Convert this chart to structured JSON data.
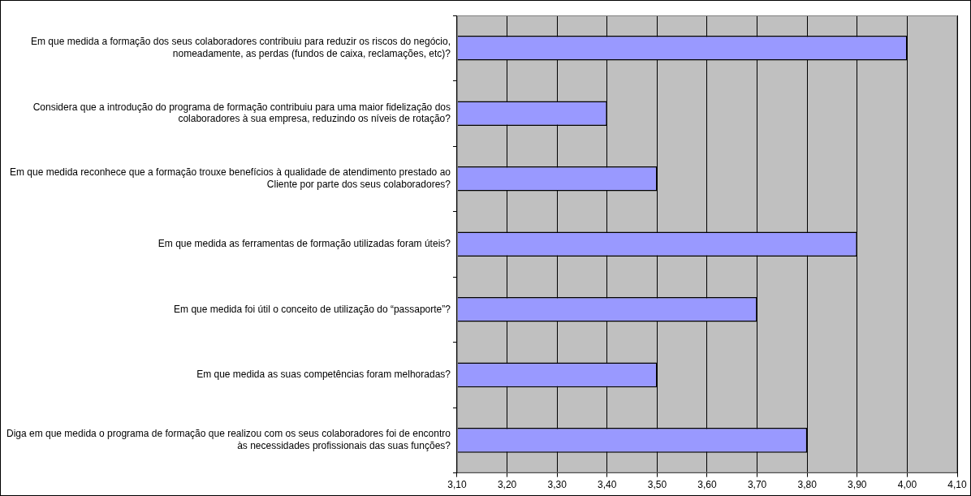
{
  "chart_data": {
    "type": "bar",
    "orientation": "horizontal",
    "categories": [
      "Em que medida a formação dos seus colaboradores contribuiu para reduzir os riscos do negócio, nomeadamente, as perdas (fundos de caixa, reclamações, etc)?",
      "Considera que a introdução do programa de formação contribuiu para uma maior fidelização dos colaboradores à sua empresa, reduzindo os níveis de rotação?",
      "Em que medida reconhece que a formação trouxe benefícios à qualidade de atendimento prestado ao Cliente por parte dos seus colaboradores?",
      "Em que medida as ferramentas de formação utilizadas foram úteis?",
      "Em que medida foi útil o conceito de utilização do “passaporte”?",
      "Em que medida as suas competências foram melhoradas?",
      "Diga em que medida o programa de formação que realizou com os seus colaboradores foi de encontro às necessidades profissionais das suas funções?"
    ],
    "values": [
      4.0,
      3.4,
      3.5,
      3.9,
      3.7,
      3.5,
      3.8
    ],
    "color": "#9999ff",
    "xlim": [
      3.1,
      4.1
    ],
    "xticks": [
      {
        "value": 3.1,
        "label": "3,10"
      },
      {
        "value": 3.2,
        "label": "3,20"
      },
      {
        "value": 3.3,
        "label": "3,30"
      },
      {
        "value": 3.4,
        "label": "3,40"
      },
      {
        "value": 3.5,
        "label": "3,50"
      },
      {
        "value": 3.6,
        "label": "3,60"
      },
      {
        "value": 3.7,
        "label": "3,70"
      },
      {
        "value": 3.8,
        "label": "3,80"
      },
      {
        "value": 3.9,
        "label": "3,90"
      },
      {
        "value": 4.0,
        "label": "4,00"
      },
      {
        "value": 4.1,
        "label": "4,10"
      }
    ],
    "grid": "x",
    "legend": false
  }
}
